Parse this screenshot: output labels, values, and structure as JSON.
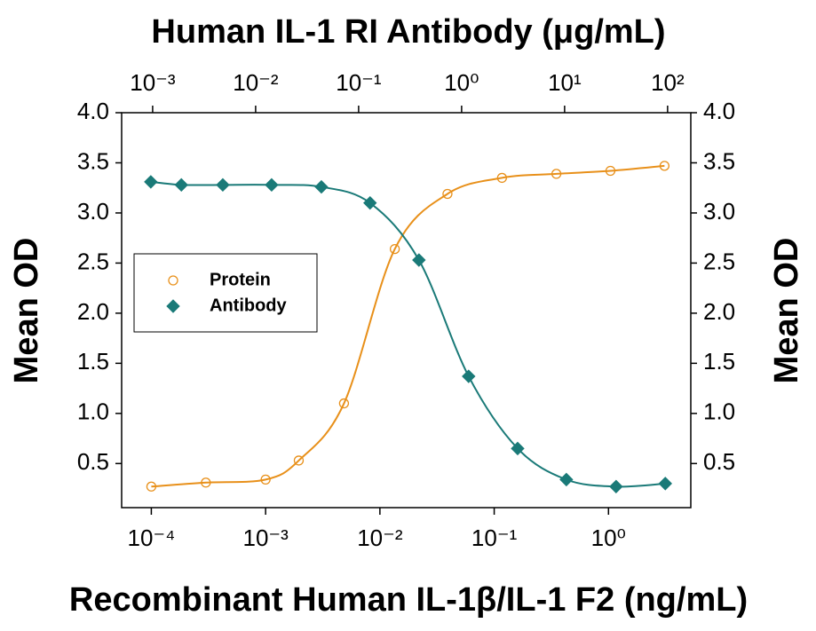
{
  "chart_data": {
    "type": "scatter",
    "x2label": "Human IL-1 RI Antibody (μg/mL)",
    "xlabel": "Recombinant Human IL-1β/IL-1 F2 (ng/mL)",
    "ylabel": "Mean OD",
    "y2label": "Mean OD",
    "xscale": "log",
    "xlim": [
      5.5e-05,
      5.25
    ],
    "xticks": [
      {
        "value": 0.0001,
        "label": "10⁻⁴"
      },
      {
        "value": 0.001,
        "label": "10⁻³"
      },
      {
        "value": 0.01,
        "label": "10⁻²"
      },
      {
        "value": 0.1,
        "label": "10⁻¹"
      },
      {
        "value": 1,
        "label": "10⁰"
      }
    ],
    "x2lim": [
      0.0005,
      168
    ],
    "x2ticks": [
      {
        "value": 0.001,
        "label": "10⁻³"
      },
      {
        "value": 0.01,
        "label": "10⁻²"
      },
      {
        "value": 0.1,
        "label": "10⁻¹"
      },
      {
        "value": 1,
        "label": "10⁰"
      },
      {
        "value": 10,
        "label": "10¹"
      },
      {
        "value": 100,
        "label": "10²"
      }
    ],
    "ylim": [
      0.06,
      4.0
    ],
    "yticks": [
      0.5,
      {
        "value": 1,
        "label": "1.0"
      },
      1.5,
      {
        "value": 2,
        "label": "2.0"
      },
      2.5,
      {
        "value": 3,
        "label": "3.0"
      },
      3.5,
      {
        "value": 4,
        "label": "4.0"
      }
    ],
    "y2lim": [
      0.06,
      4.0
    ],
    "y2ticks": [
      0.5,
      {
        "value": 1,
        "label": "1.0"
      },
      1.5,
      {
        "value": 2,
        "label": "2.0"
      },
      2.5,
      {
        "value": 3,
        "label": "3.0"
      },
      3.5,
      {
        "value": 4,
        "label": "4.0"
      }
    ],
    "legend": "left",
    "series": [
      {
        "name": "Protein",
        "color": "#e8901a",
        "marker": "circle",
        "x": [
          0.0001,
          0.0003,
          0.001,
          0.00195,
          0.00485,
          0.0135,
          0.039,
          0.117,
          0.35,
          1.04,
          3.09
        ],
        "values": [
          0.27,
          0.31,
          0.34,
          0.53,
          1.1,
          2.64,
          3.19,
          3.35,
          3.39,
          3.42,
          3.47
        ]
      },
      {
        "name": "Antibody",
        "color": "#1a7a78",
        "marker": "diamond",
        "xaxis": "x2",
        "x": [
          0.00096,
          0.0019,
          0.0048,
          0.0143,
          0.0435,
          0.129,
          0.385,
          1.17,
          3.5,
          10.4,
          31.6,
          95
        ],
        "values": [
          3.31,
          3.28,
          3.28,
          3.28,
          3.26,
          3.1,
          2.53,
          1.37,
          0.65,
          0.34,
          0.27,
          0.3
        ]
      }
    ]
  }
}
